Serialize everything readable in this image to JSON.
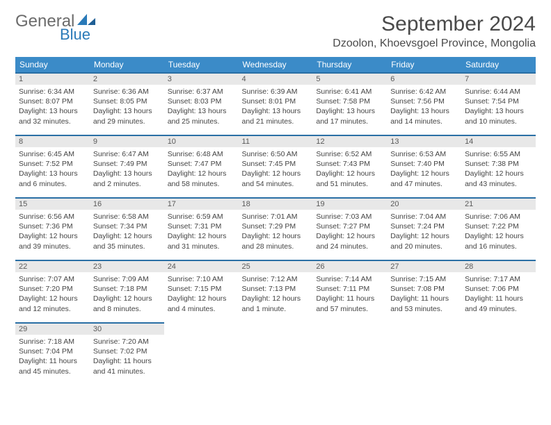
{
  "logo": {
    "line1": "General",
    "line2": "Blue"
  },
  "header": {
    "month": "September 2024",
    "location": "Dzoolon, Khoevsgoel Province, Mongolia"
  },
  "colors": {
    "header_bg": "#3b8bc8",
    "header_text": "#ffffff",
    "daynum_bg": "#e8e8e8",
    "daynum_border": "#2a6fa5",
    "body_text": "#444444",
    "logo_gray": "#6b6b6b",
    "logo_blue": "#2a7ab8"
  },
  "weekdays": [
    "Sunday",
    "Monday",
    "Tuesday",
    "Wednesday",
    "Thursday",
    "Friday",
    "Saturday"
  ],
  "days": [
    {
      "n": "1",
      "sr": "6:34 AM",
      "ss": "8:07 PM",
      "dl": "13 hours and 32 minutes."
    },
    {
      "n": "2",
      "sr": "6:36 AM",
      "ss": "8:05 PM",
      "dl": "13 hours and 29 minutes."
    },
    {
      "n": "3",
      "sr": "6:37 AM",
      "ss": "8:03 PM",
      "dl": "13 hours and 25 minutes."
    },
    {
      "n": "4",
      "sr": "6:39 AM",
      "ss": "8:01 PM",
      "dl": "13 hours and 21 minutes."
    },
    {
      "n": "5",
      "sr": "6:41 AM",
      "ss": "7:58 PM",
      "dl": "13 hours and 17 minutes."
    },
    {
      "n": "6",
      "sr": "6:42 AM",
      "ss": "7:56 PM",
      "dl": "13 hours and 14 minutes."
    },
    {
      "n": "7",
      "sr": "6:44 AM",
      "ss": "7:54 PM",
      "dl": "13 hours and 10 minutes."
    },
    {
      "n": "8",
      "sr": "6:45 AM",
      "ss": "7:52 PM",
      "dl": "13 hours and 6 minutes."
    },
    {
      "n": "9",
      "sr": "6:47 AM",
      "ss": "7:49 PM",
      "dl": "13 hours and 2 minutes."
    },
    {
      "n": "10",
      "sr": "6:48 AM",
      "ss": "7:47 PM",
      "dl": "12 hours and 58 minutes."
    },
    {
      "n": "11",
      "sr": "6:50 AM",
      "ss": "7:45 PM",
      "dl": "12 hours and 54 minutes."
    },
    {
      "n": "12",
      "sr": "6:52 AM",
      "ss": "7:43 PM",
      "dl": "12 hours and 51 minutes."
    },
    {
      "n": "13",
      "sr": "6:53 AM",
      "ss": "7:40 PM",
      "dl": "12 hours and 47 minutes."
    },
    {
      "n": "14",
      "sr": "6:55 AM",
      "ss": "7:38 PM",
      "dl": "12 hours and 43 minutes."
    },
    {
      "n": "15",
      "sr": "6:56 AM",
      "ss": "7:36 PM",
      "dl": "12 hours and 39 minutes."
    },
    {
      "n": "16",
      "sr": "6:58 AM",
      "ss": "7:34 PM",
      "dl": "12 hours and 35 minutes."
    },
    {
      "n": "17",
      "sr": "6:59 AM",
      "ss": "7:31 PM",
      "dl": "12 hours and 31 minutes."
    },
    {
      "n": "18",
      "sr": "7:01 AM",
      "ss": "7:29 PM",
      "dl": "12 hours and 28 minutes."
    },
    {
      "n": "19",
      "sr": "7:03 AM",
      "ss": "7:27 PM",
      "dl": "12 hours and 24 minutes."
    },
    {
      "n": "20",
      "sr": "7:04 AM",
      "ss": "7:24 PM",
      "dl": "12 hours and 20 minutes."
    },
    {
      "n": "21",
      "sr": "7:06 AM",
      "ss": "7:22 PM",
      "dl": "12 hours and 16 minutes."
    },
    {
      "n": "22",
      "sr": "7:07 AM",
      "ss": "7:20 PM",
      "dl": "12 hours and 12 minutes."
    },
    {
      "n": "23",
      "sr": "7:09 AM",
      "ss": "7:18 PM",
      "dl": "12 hours and 8 minutes."
    },
    {
      "n": "24",
      "sr": "7:10 AM",
      "ss": "7:15 PM",
      "dl": "12 hours and 4 minutes."
    },
    {
      "n": "25",
      "sr": "7:12 AM",
      "ss": "7:13 PM",
      "dl": "12 hours and 1 minute."
    },
    {
      "n": "26",
      "sr": "7:14 AM",
      "ss": "7:11 PM",
      "dl": "11 hours and 57 minutes."
    },
    {
      "n": "27",
      "sr": "7:15 AM",
      "ss": "7:08 PM",
      "dl": "11 hours and 53 minutes."
    },
    {
      "n": "28",
      "sr": "7:17 AM",
      "ss": "7:06 PM",
      "dl": "11 hours and 49 minutes."
    },
    {
      "n": "29",
      "sr": "7:18 AM",
      "ss": "7:04 PM",
      "dl": "11 hours and 45 minutes."
    },
    {
      "n": "30",
      "sr": "7:20 AM",
      "ss": "7:02 PM",
      "dl": "11 hours and 41 minutes."
    }
  ],
  "labels": {
    "sunrise": "Sunrise:",
    "sunset": "Sunset:",
    "daylight": "Daylight:"
  },
  "layout": {
    "first_weekday_index": 0,
    "rows": 5,
    "cols": 7
  }
}
